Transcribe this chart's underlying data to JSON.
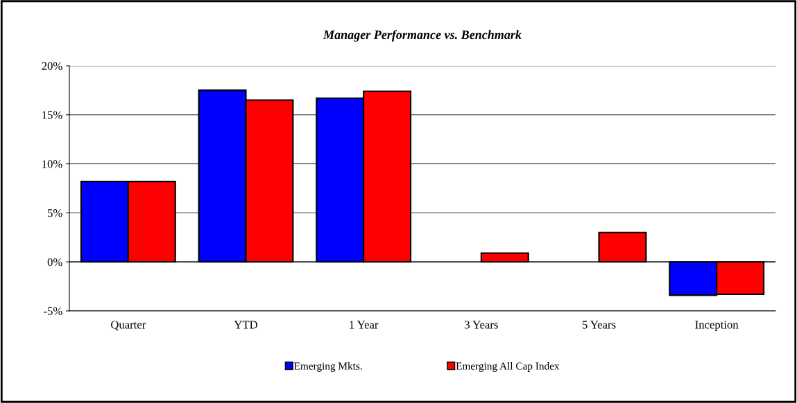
{
  "chart_data": {
    "type": "bar",
    "title": "Manager Performance vs. Benchmark",
    "categories": [
      "Quarter",
      "YTD",
      "1 Year",
      "3 Years",
      "5 Years",
      "Inception"
    ],
    "series": [
      {
        "name": "Emerging Mkts.",
        "color": "#0000ff",
        "values": [
          8.2,
          17.5,
          16.7,
          null,
          null,
          -3.4
        ]
      },
      {
        "name": "Emerging All Cap Index",
        "color": "#ff0000",
        "values": [
          8.2,
          16.5,
          17.4,
          0.9,
          3.0,
          -3.3
        ]
      }
    ],
    "ylim": [
      -5,
      20
    ],
    "yticks": [
      {
        "value": -5,
        "label": "-5%"
      },
      {
        "value": 0,
        "label": "0%"
      },
      {
        "value": 5,
        "label": "5%"
      },
      {
        "value": 10,
        "label": "10%"
      },
      {
        "value": 15,
        "label": "15%"
      },
      {
        "value": 20,
        "label": "20%"
      }
    ],
    "grid": "y",
    "legend": "bottom"
  }
}
